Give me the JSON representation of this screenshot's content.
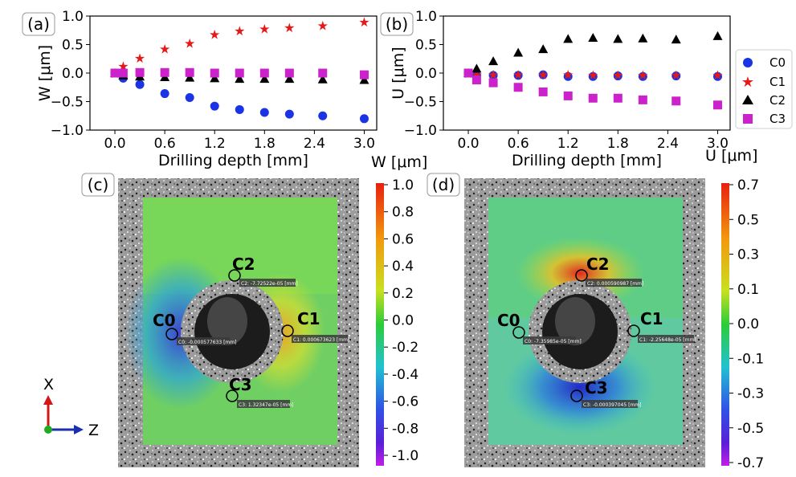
{
  "panel_labels": {
    "a": "(a)",
    "b": "(b)",
    "c": "(c)",
    "d": "(d)"
  },
  "legend": [
    {
      "name": "C0",
      "marker": "circle",
      "color": "#1a33e6"
    },
    {
      "name": "C1",
      "marker": "star",
      "color": "#e61919"
    },
    {
      "name": "C2",
      "marker": "triangle",
      "color": "#000000"
    },
    {
      "name": "C3",
      "marker": "square",
      "color": "#cc22cc"
    }
  ],
  "chart_data": [
    {
      "type": "scatter",
      "id": "a",
      "xlabel": "Drilling depth [mm]",
      "ylabel": "W [μm]",
      "xlim": [
        -0.3,
        3.15
      ],
      "ylim": [
        -1.0,
        1.0
      ],
      "xticks": [
        "0.0",
        "0.6",
        "1.2",
        "1.8",
        "2.4",
        "3.0"
      ],
      "xtick_values": [
        0,
        0.6,
        1.2,
        1.8,
        2.4,
        3.0
      ],
      "yticks": [
        "1.0",
        "0.5",
        "0.0",
        "−0.5",
        "−1.0"
      ],
      "ytick_values": [
        1.0,
        0.5,
        0.0,
        -0.5,
        -1.0
      ],
      "x": [
        0.0,
        0.1,
        0.3,
        0.6,
        0.9,
        1.2,
        1.5,
        1.8,
        2.1,
        2.5,
        3.0
      ],
      "series": [
        {
          "name": "C0",
          "values": [
            0.0,
            -0.09,
            -0.2,
            -0.36,
            -0.43,
            -0.58,
            -0.64,
            -0.69,
            -0.72,
            -0.75,
            -0.8
          ]
        },
        {
          "name": "C1",
          "values": [
            0.0,
            0.13,
            0.27,
            0.43,
            0.53,
            0.68,
            0.75,
            0.78,
            0.8,
            0.84,
            0.9
          ]
        },
        {
          "name": "C2",
          "values": [
            0.0,
            -0.04,
            -0.06,
            -0.07,
            -0.08,
            -0.09,
            -0.1,
            -0.1,
            -0.1,
            -0.11,
            -0.12
          ]
        },
        {
          "name": "C3",
          "values": [
            0.0,
            0.0,
            0.01,
            0.01,
            0.01,
            0.0,
            0.0,
            0.0,
            0.0,
            0.0,
            -0.03
          ]
        }
      ]
    },
    {
      "type": "scatter",
      "id": "b",
      "xlabel": "Drilling depth [mm]",
      "ylabel": "U [μm]",
      "xlim": [
        -0.3,
        3.15
      ],
      "ylim": [
        -1.0,
        1.0
      ],
      "xticks": [
        "0.0",
        "0.6",
        "1.2",
        "1.8",
        "2.4",
        "3.0"
      ],
      "xtick_values": [
        0,
        0.6,
        1.2,
        1.8,
        2.4,
        3.0
      ],
      "yticks": [
        "1.0",
        "0.5",
        "0.0",
        "−0.5",
        "−1.0"
      ],
      "ytick_values": [
        1.0,
        0.5,
        0.0,
        -0.5,
        -1.0
      ],
      "x": [
        0.0,
        0.1,
        0.3,
        0.6,
        0.9,
        1.2,
        1.5,
        1.8,
        2.1,
        2.5,
        3.0
      ],
      "series": [
        {
          "name": "C0",
          "values": [
            0.0,
            -0.04,
            -0.04,
            -0.04,
            -0.03,
            -0.06,
            -0.06,
            -0.05,
            -0.06,
            -0.05,
            -0.06
          ]
        },
        {
          "name": "C1",
          "values": [
            0.0,
            -0.02,
            -0.02,
            -0.02,
            -0.02,
            -0.02,
            -0.03,
            -0.03,
            -0.03,
            -0.03,
            -0.03
          ]
        },
        {
          "name": "C2",
          "values": [
            0.0,
            0.08,
            0.21,
            0.36,
            0.42,
            0.6,
            0.62,
            0.6,
            0.61,
            0.59,
            0.65
          ]
        },
        {
          "name": "C3",
          "values": [
            0.0,
            -0.12,
            -0.17,
            -0.25,
            -0.33,
            -0.4,
            -0.44,
            -0.44,
            -0.47,
            -0.49,
            -0.56
          ]
        }
      ]
    }
  ],
  "colorbars": [
    {
      "id": "c",
      "title": "W [μm]",
      "ticks": [
        "1.0",
        "0.8",
        "0.6",
        "0.4",
        "0.2",
        "0.0",
        "-0.2",
        "-0.4",
        "-0.6",
        "-0.8",
        "-1.0"
      ]
    },
    {
      "id": "d",
      "title": "U [μm]",
      "ticks": [
        "0.7",
        "0.5",
        "0.3",
        "0.1",
        "0.0",
        "-0.1",
        "-0.3",
        "-0.5",
        "-0.7"
      ]
    }
  ],
  "axes_triad": {
    "x": "X",
    "z": "Z"
  },
  "contour_c": {
    "labels": [
      "C0",
      "C1",
      "C2",
      "C3"
    ],
    "notes": [
      "C0: -0.000577633 [mm]",
      "C1: 0.000673623 [mm]",
      "C2: -7.72522e-05 [mm]",
      "C3: 1.32347e-05 [mm]"
    ]
  },
  "contour_d": {
    "labels": [
      "C0",
      "C1",
      "C2",
      "C3"
    ],
    "notes": [
      "C0: -7.35985e-05 [mm]",
      "C1: -2.25648e-05 [mm]",
      "C2: 0.000590987 [mm]",
      "C3: -0.000397045 [mm]"
    ]
  }
}
